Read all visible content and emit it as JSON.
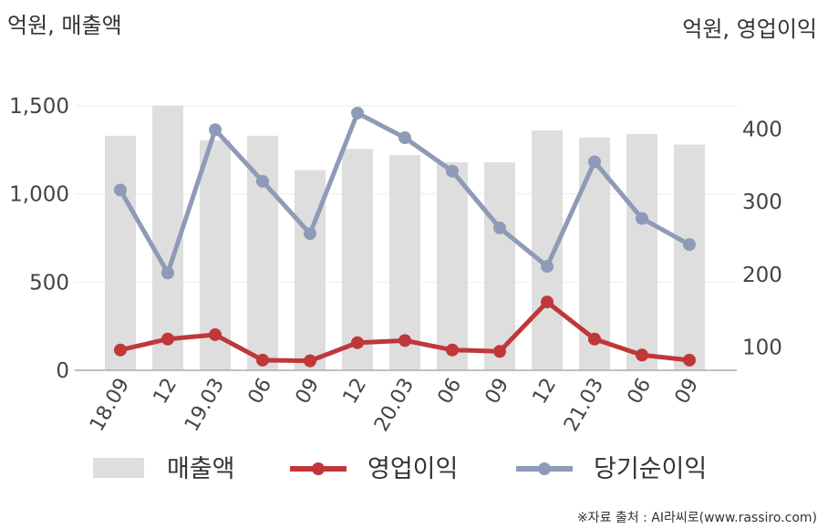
{
  "chart_data": {
    "type": "bar",
    "left_unit": "억원, 매출액",
    "right_unit": "억원, 영업이익",
    "categories": [
      "18.09",
      "12",
      "19.03",
      "06",
      "09",
      "12",
      "20.03",
      "06",
      "09",
      "12",
      "21.03",
      "06",
      "09"
    ],
    "y_left": {
      "ticks": [
        0,
        500,
        1000,
        1500
      ],
      "tick_labels": [
        "0",
        "500",
        "1,000",
        "1,500"
      ],
      "range": [
        0,
        1500
      ]
    },
    "y_right": {
      "ticks": [
        100,
        200,
        300,
        400
      ],
      "tick_labels": [
        "100",
        "200",
        "300",
        "400"
      ],
      "range": [
        68,
        432
      ]
    },
    "series": [
      {
        "name": "매출액",
        "type": "bar",
        "axis": "left",
        "color": "#dedede",
        "values": [
          1330,
          1500,
          1305,
          1330,
          1135,
          1255,
          1220,
          1180,
          1180,
          1360,
          1320,
          1340,
          1280
        ]
      },
      {
        "name": "영업이익",
        "type": "line",
        "axis": "right",
        "color": "#c0373a",
        "values": [
          96,
          111,
          117,
          82,
          81,
          106,
          109,
          96,
          94,
          162,
          111,
          89,
          82
        ]
      },
      {
        "name": "당기순이익",
        "type": "line",
        "axis": "right",
        "color": "#8e9bb6",
        "values": [
          316,
          202,
          399,
          328,
          256,
          422,
          388,
          342,
          264,
          211,
          355,
          277,
          241
        ]
      }
    ],
    "grid": true,
    "legend_position": "bottom"
  },
  "source": "※자료 출처 : AI라씨로(www.rassiro.com)"
}
